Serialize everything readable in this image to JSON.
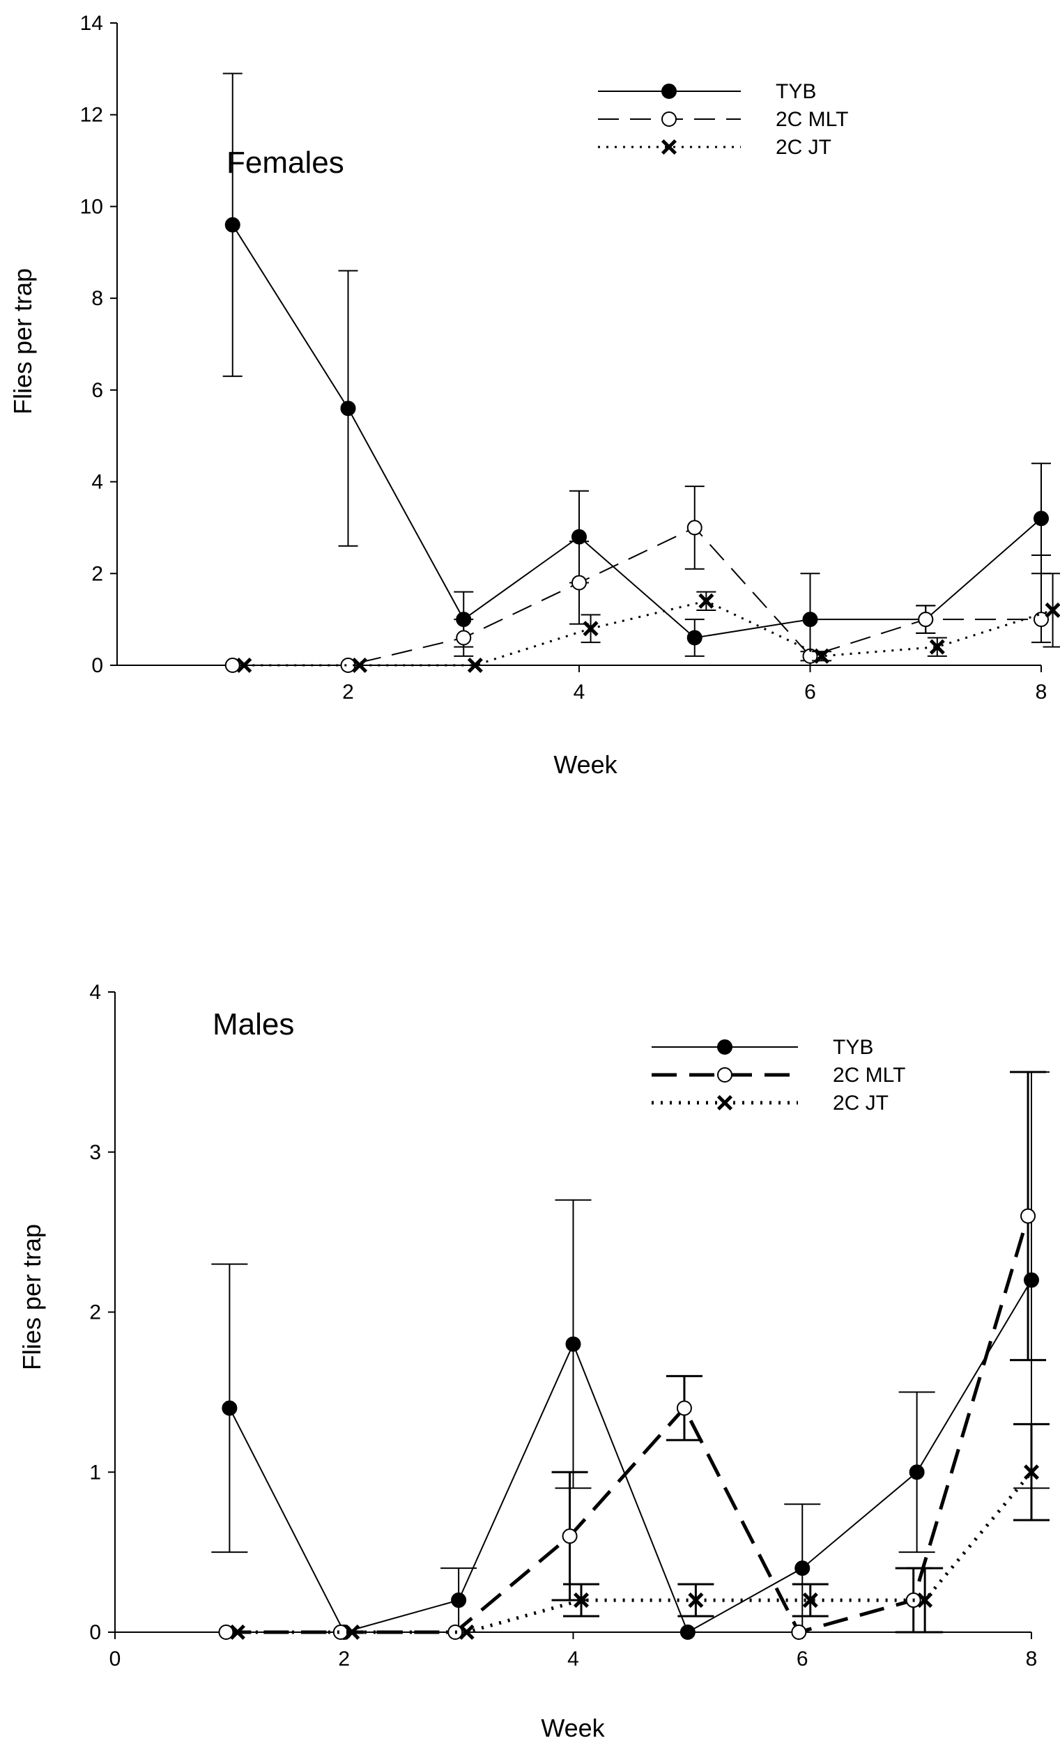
{
  "chart_data": [
    {
      "type": "line",
      "title": "Females",
      "xlabel": "Week",
      "ylabel": "Flies per trap",
      "xlim": [
        0,
        8
      ],
      "ylim": [
        0,
        14
      ],
      "x_ticks": [
        2,
        4,
        6,
        8
      ],
      "y_ticks": [
        0,
        2,
        4,
        6,
        8,
        10,
        12,
        14
      ],
      "legend_position": "top-right",
      "series": [
        {
          "name": "TYB",
          "marker": "filled-circle",
          "line": "solid",
          "x": [
            1,
            2,
            3,
            4,
            5,
            6,
            7,
            8
          ],
          "values": [
            9.6,
            5.6,
            1.0,
            2.8,
            0.6,
            1.0,
            1.0,
            3.2
          ],
          "err_low": [
            6.3,
            2.6,
            0.4,
            1.8,
            0.2,
            0.0,
            0.7,
            2.0
          ],
          "err_high": [
            12.9,
            8.6,
            1.6,
            3.8,
            1.0,
            2.0,
            1.3,
            4.4
          ]
        },
        {
          "name": "2C MLT",
          "marker": "open-circle",
          "line": "dashed",
          "x": [
            1,
            2,
            3,
            4,
            5,
            6,
            7,
            8
          ],
          "values": [
            0,
            0,
            0.6,
            1.8,
            3.0,
            0.2,
            1.0,
            1.0
          ],
          "err_low": [
            0,
            0,
            0.2,
            0.9,
            2.1,
            0.1,
            0.7,
            0.5
          ],
          "err_high": [
            0,
            0,
            1.0,
            2.7,
            3.9,
            0.3,
            1.3,
            2.4
          ]
        },
        {
          "name": "2C JT",
          "marker": "cross",
          "line": "dotted",
          "x": [
            1.1,
            2.1,
            3.1,
            4.1,
            5.1,
            6.1,
            7.1,
            8.1
          ],
          "values": [
            0,
            0,
            0,
            0.8,
            1.4,
            0.2,
            0.4,
            1.2
          ],
          "err_low": [
            0,
            0,
            0,
            0.5,
            1.2,
            0.1,
            0.2,
            0.4
          ],
          "err_high": [
            0,
            0,
            0,
            1.1,
            1.6,
            0.3,
            0.6,
            2.0
          ]
        }
      ]
    },
    {
      "type": "line",
      "title": "Males",
      "xlabel": "Week",
      "ylabel": "Flies per trap",
      "xlim": [
        0,
        8
      ],
      "ylim": [
        0,
        4
      ],
      "x_ticks": [
        0,
        2,
        4,
        6,
        8
      ],
      "y_ticks": [
        0,
        1,
        2,
        3,
        4
      ],
      "legend_position": "top-right",
      "series": [
        {
          "name": "TYB",
          "marker": "filled-circle",
          "line": "solid",
          "x": [
            1,
            2,
            3,
            4,
            5,
            6,
            7,
            8
          ],
          "values": [
            1.4,
            0,
            0.2,
            1.8,
            0,
            0.4,
            1.0,
            2.2
          ],
          "err_low": [
            0.5,
            0,
            0.0,
            0.9,
            0,
            0.0,
            0.5,
            0.9
          ],
          "err_high": [
            2.3,
            0,
            0.4,
            2.7,
            0,
            0.8,
            1.5,
            3.5
          ]
        },
        {
          "name": "2C MLT",
          "marker": "open-circle",
          "line": "dashed",
          "x": [
            0.97,
            1.97,
            2.97,
            3.97,
            4.97,
            5.97,
            6.97,
            7.97
          ],
          "values": [
            0,
            0,
            0,
            0.6,
            1.4,
            0,
            0.2,
            2.6
          ],
          "err_low": [
            0,
            0,
            0,
            0.2,
            1.2,
            0,
            0.0,
            1.7
          ],
          "err_high": [
            0,
            0,
            0,
            1.0,
            1.6,
            0,
            0.4,
            3.5
          ]
        },
        {
          "name": "2C JT",
          "marker": "cross",
          "line": "dotted",
          "x": [
            1.07,
            2.07,
            3.07,
            4.07,
            5.07,
            6.07,
            7.07,
            8.0
          ],
          "values": [
            0,
            0,
            0,
            0.2,
            0.2,
            0.2,
            0.2,
            1.0
          ],
          "err_low": [
            0,
            0,
            0,
            0.1,
            0.1,
            0.1,
            0.0,
            0.7
          ],
          "err_high": [
            0,
            0,
            0,
            0.3,
            0.3,
            0.3,
            0.4,
            1.3
          ]
        }
      ]
    }
  ]
}
